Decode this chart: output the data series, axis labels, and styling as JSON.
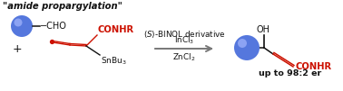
{
  "title": "\"amide propargylation\"",
  "bg_color": "#ffffff",
  "ball_color_outer": "#4466cc",
  "ball_color_inner": "#8899ee",
  "ball_highlight": "#aabbff",
  "red_color": "#cc1100",
  "black_color": "#111111",
  "arrow_color": "#777777",
  "reagent1": "InCl$_3$",
  "reagent2": "($S$)-BINOL derivative",
  "reagent3": "ZnCl$_2$",
  "er_text": "up to 98:2 er"
}
